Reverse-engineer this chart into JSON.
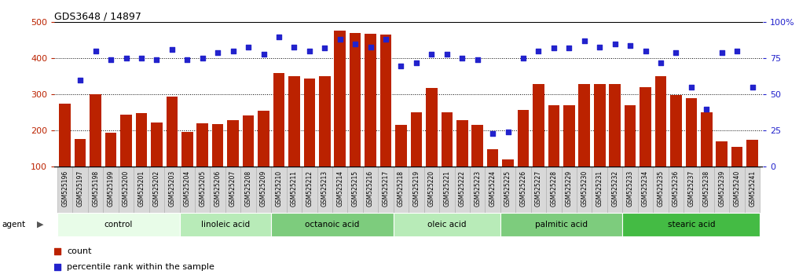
{
  "title": "GDS3648 / 14897",
  "samples": [
    "GSM525196",
    "GSM525197",
    "GSM525198",
    "GSM525199",
    "GSM525200",
    "GSM525201",
    "GSM525202",
    "GSM525203",
    "GSM525204",
    "GSM525205",
    "GSM525206",
    "GSM525207",
    "GSM525208",
    "GSM525209",
    "GSM525210",
    "GSM525211",
    "GSM525212",
    "GSM525213",
    "GSM525214",
    "GSM525215",
    "GSM525216",
    "GSM525217",
    "GSM525218",
    "GSM525219",
    "GSM525220",
    "GSM525221",
    "GSM525222",
    "GSM525223",
    "GSM525224",
    "GSM525225",
    "GSM525226",
    "GSM525227",
    "GSM525228",
    "GSM525229",
    "GSM525230",
    "GSM525231",
    "GSM525232",
    "GSM525233",
    "GSM525234",
    "GSM525235",
    "GSM525236",
    "GSM525237",
    "GSM525238",
    "GSM525239",
    "GSM525240",
    "GSM525241"
  ],
  "counts": [
    275,
    178,
    300,
    195,
    245,
    248,
    222,
    295,
    197,
    220,
    218,
    228,
    243,
    255,
    360,
    350,
    345,
    350,
    477,
    470,
    468,
    467,
    215,
    250,
    318,
    250,
    230,
    215,
    148,
    120,
    257,
    330,
    270,
    271,
    330,
    330,
    328,
    270,
    320,
    350,
    298,
    290,
    250,
    170,
    155,
    175
  ],
  "percentile_ranks": [
    null,
    60,
    80,
    74,
    75,
    75,
    74,
    81,
    74,
    75,
    79,
    80,
    83,
    78,
    90,
    83,
    80,
    82,
    88,
    85,
    83,
    88,
    70,
    72,
    78,
    78,
    75,
    74,
    23,
    24,
    75,
    80,
    82,
    82,
    87,
    83,
    85,
    84,
    80,
    72,
    79,
    55,
    40,
    79,
    80,
    55
  ],
  "groups": [
    {
      "label": "control",
      "start": 0,
      "end": 8,
      "color": "#e8fce8"
    },
    {
      "label": "linoleic acid",
      "start": 8,
      "end": 14,
      "color": "#b8ebb8"
    },
    {
      "label": "octanoic acid",
      "start": 14,
      "end": 22,
      "color": "#7dcc7d"
    },
    {
      "label": "oleic acid",
      "start": 22,
      "end": 29,
      "color": "#b8ebb8"
    },
    {
      "label": "palmitic acid",
      "start": 29,
      "end": 37,
      "color": "#7dcc7d"
    },
    {
      "label": "stearic acid",
      "start": 37,
      "end": 46,
      "color": "#44bb44"
    }
  ],
  "bar_color": "#bb2200",
  "dot_color": "#2222cc",
  "ylim_left": [
    100,
    500
  ],
  "ylim_right": [
    0,
    100
  ],
  "yticks_left": [
    100,
    200,
    300,
    400,
    500
  ],
  "yticks_right": [
    0,
    25,
    50,
    75,
    100
  ],
  "grid_values": [
    200,
    300,
    400
  ],
  "title_fontsize": 9
}
